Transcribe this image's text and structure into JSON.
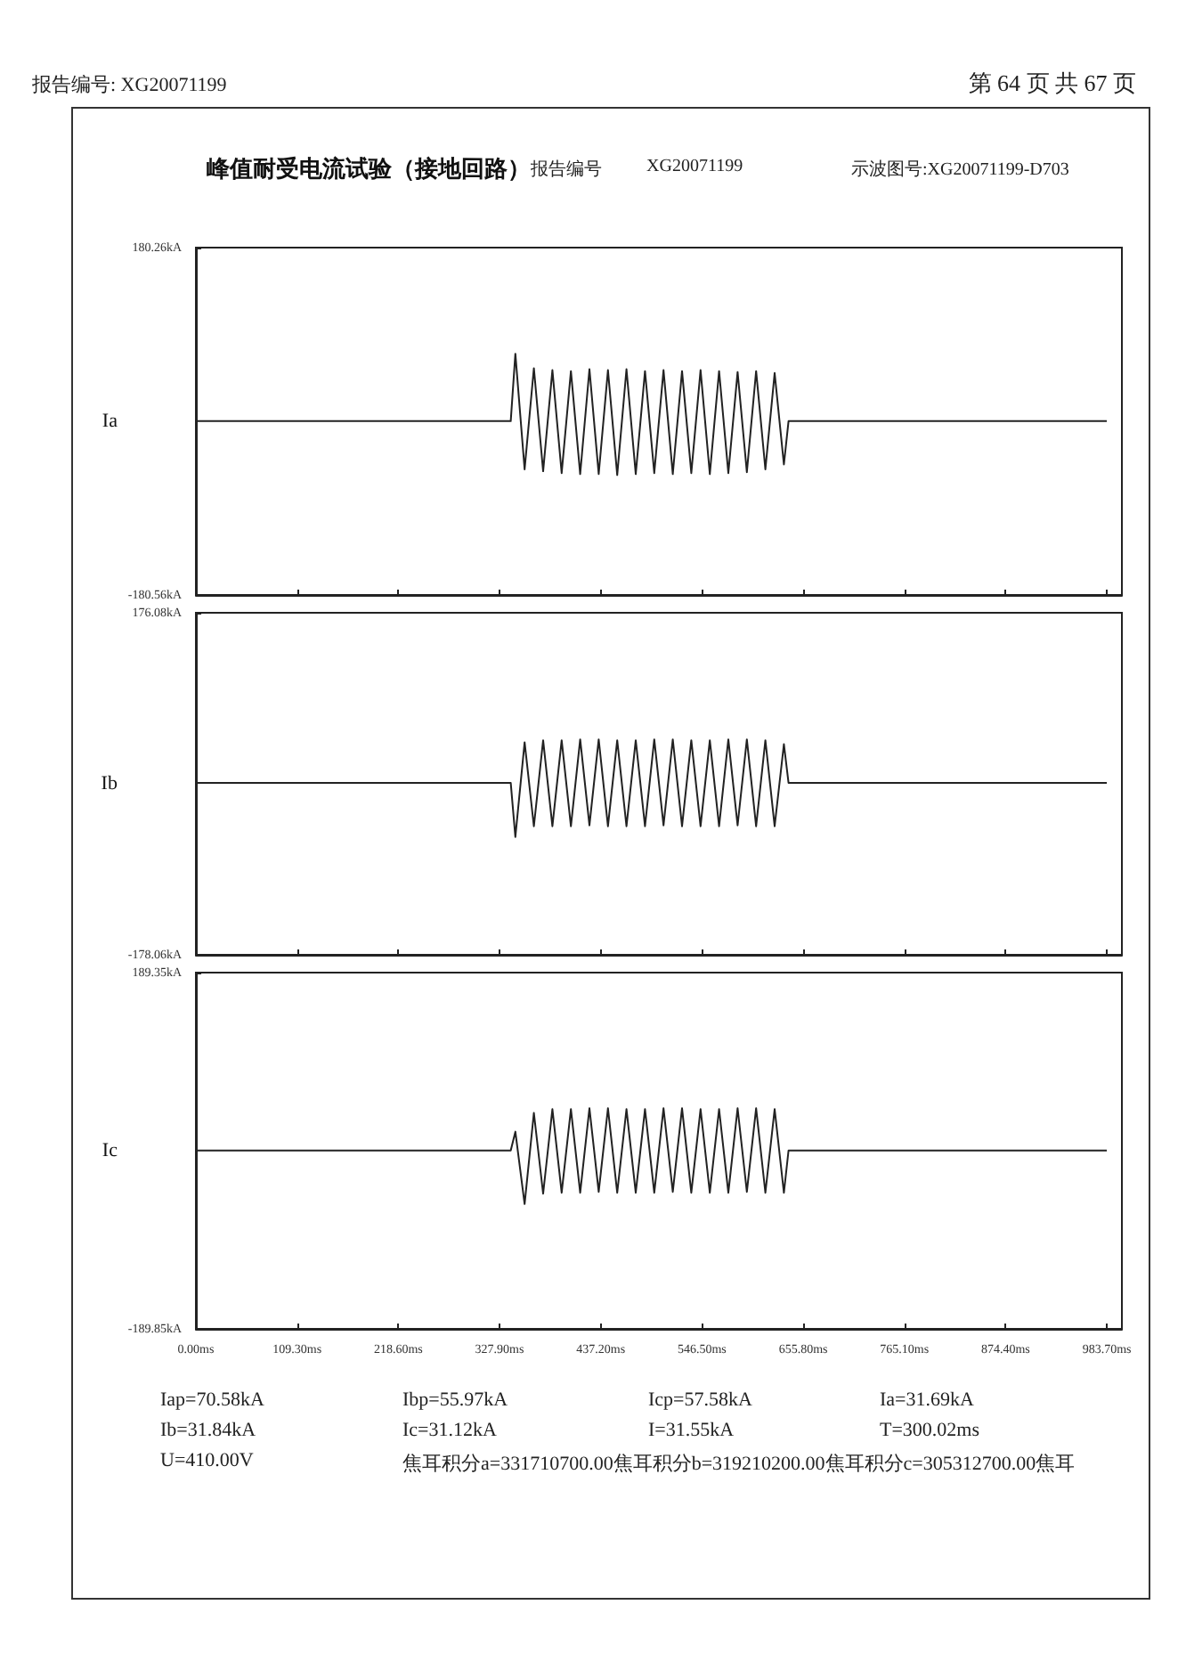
{
  "chart_data": [
    {
      "type": "line",
      "title": "峰值耐受电流试验（接地回路）",
      "annotations": [
        "报告编号: XG20071199",
        "第 64 页 共 67 页",
        "报告编号",
        "XG20071199",
        "示波图号:XG20071199-D703"
      ],
      "ylabel": "Ia",
      "marker": "none",
      "tick_labels": "y",
      "x": [
        0,
        340,
        345,
        355,
        365,
        375,
        385,
        395,
        405,
        415,
        425,
        435,
        445,
        455,
        465,
        475,
        485,
        495,
        505,
        515,
        525,
        535,
        545,
        555,
        565,
        575,
        585,
        595,
        605,
        615,
        625,
        635,
        640,
        983.7
      ],
      "series": [
        {
          "color": "#222222",
          "values": [
            0,
            0,
            70,
            -50,
            55,
            -52,
            53,
            -54,
            52,
            -55,
            54,
            -55,
            53,
            -56,
            54,
            -55,
            52,
            -54,
            53,
            -55,
            52,
            -54,
            53,
            -55,
            52,
            -54,
            51,
            -53,
            52,
            -50,
            50,
            -45,
            0,
            0
          ]
        }
      ],
      "xlim": [
        0,
        1000
      ],
      "xticks": [
        {
          "value": 0,
          "label": null
        },
        {
          "value": 109.3,
          "label": null
        },
        {
          "value": 218.6,
          "label": null
        },
        {
          "value": 327.9,
          "label": null
        },
        {
          "value": 437.2,
          "label": null
        },
        {
          "value": 546.5,
          "label": null
        },
        {
          "value": 655.8,
          "label": null
        },
        {
          "value": 765.1,
          "label": null
        },
        {
          "value": 874.4,
          "label": null
        },
        {
          "value": 983.7,
          "label": null
        }
      ],
      "ylim": [
        -180.56,
        180.26
      ],
      "yticks": [
        {
          "value": -180.56,
          "label": "-180.56kA"
        },
        {
          "value": 180.26,
          "label": "180.26kA"
        }
      ]
    },
    {
      "type": "line",
      "ylabel": "Ib",
      "marker": "none",
      "tick_labels": "y",
      "x": [
        0,
        340,
        345,
        355,
        365,
        375,
        385,
        395,
        405,
        415,
        425,
        435,
        445,
        455,
        465,
        475,
        485,
        495,
        505,
        515,
        525,
        535,
        545,
        555,
        565,
        575,
        585,
        595,
        605,
        615,
        625,
        635,
        640,
        983.7
      ],
      "series": [
        {
          "color": "#222222",
          "values": [
            0,
            0,
            -56,
            42,
            -45,
            44,
            -45,
            44,
            -45,
            45,
            -44,
            45,
            -45,
            44,
            -45,
            44,
            -45,
            45,
            -44,
            45,
            -45,
            44,
            -45,
            44,
            -45,
            45,
            -44,
            45,
            -45,
            44,
            -45,
            40,
            0,
            0
          ]
        }
      ],
      "xlim": [
        0,
        1000
      ],
      "xticks": [
        {
          "value": 0,
          "label": null
        },
        {
          "value": 109.3,
          "label": null
        },
        {
          "value": 218.6,
          "label": null
        },
        {
          "value": 327.9,
          "label": null
        },
        {
          "value": 437.2,
          "label": null
        },
        {
          "value": 546.5,
          "label": null
        },
        {
          "value": 655.8,
          "label": null
        },
        {
          "value": 765.1,
          "label": null
        },
        {
          "value": 874.4,
          "label": null
        },
        {
          "value": 983.7,
          "label": null
        }
      ],
      "ylim": [
        -178.06,
        176.08
      ],
      "yticks": [
        {
          "value": -178.06,
          "label": "-178.06kA"
        },
        {
          "value": 176.08,
          "label": "176.08kA"
        }
      ]
    },
    {
      "type": "line",
      "ylabel": "Ic",
      "marker": "none",
      "annotations": [
        "Iap=70.58kA",
        "Ibp=55.97kA",
        "Icp=57.58kA",
        "Ia=31.69kA",
        "Ib=31.84kA",
        "Ic=31.12kA",
        "I=31.55kA",
        "T=300.02ms",
        "U=410.00V",
        "焦耳积分a=331710700.00焦耳积分b=319210200.00焦耳积分c=305312700.00焦耳"
      ],
      "x": [
        0,
        340,
        345,
        355,
        365,
        375,
        385,
        395,
        405,
        415,
        425,
        435,
        445,
        455,
        465,
        475,
        485,
        495,
        505,
        515,
        525,
        535,
        545,
        555,
        565,
        575,
        585,
        595,
        605,
        615,
        625,
        635,
        640,
        983.7
      ],
      "series": [
        {
          "color": "#222222",
          "values": [
            0,
            0,
            20,
            -57,
            40,
            -46,
            44,
            -45,
            44,
            -45,
            45,
            -44,
            45,
            -45,
            44,
            -45,
            44,
            -45,
            45,
            -44,
            45,
            -45,
            44,
            -45,
            44,
            -45,
            45,
            -44,
            45,
            -45,
            44,
            -45,
            0,
            0
          ]
        }
      ],
      "xlim": [
        0,
        1000
      ],
      "xticks": [
        {
          "value": 0,
          "label": "0.00ms"
        },
        {
          "value": 109.3,
          "label": "109.30ms"
        },
        {
          "value": 218.6,
          "label": "218.60ms"
        },
        {
          "value": 327.9,
          "label": "327.90ms"
        },
        {
          "value": 437.2,
          "label": "437.20ms"
        },
        {
          "value": 546.5,
          "label": "546.50ms"
        },
        {
          "value": 655.8,
          "label": "655.80ms"
        },
        {
          "value": 765.1,
          "label": "765.10ms"
        },
        {
          "value": 874.4,
          "label": "874.40ms"
        },
        {
          "value": 983.7,
          "label": "983.70ms"
        }
      ],
      "ylim": [
        -189.85,
        189.35
      ],
      "yticks": [
        {
          "value": -189.85,
          "label": "-189.85kA"
        },
        {
          "value": 189.35,
          "label": "189.35kA"
        }
      ]
    }
  ]
}
